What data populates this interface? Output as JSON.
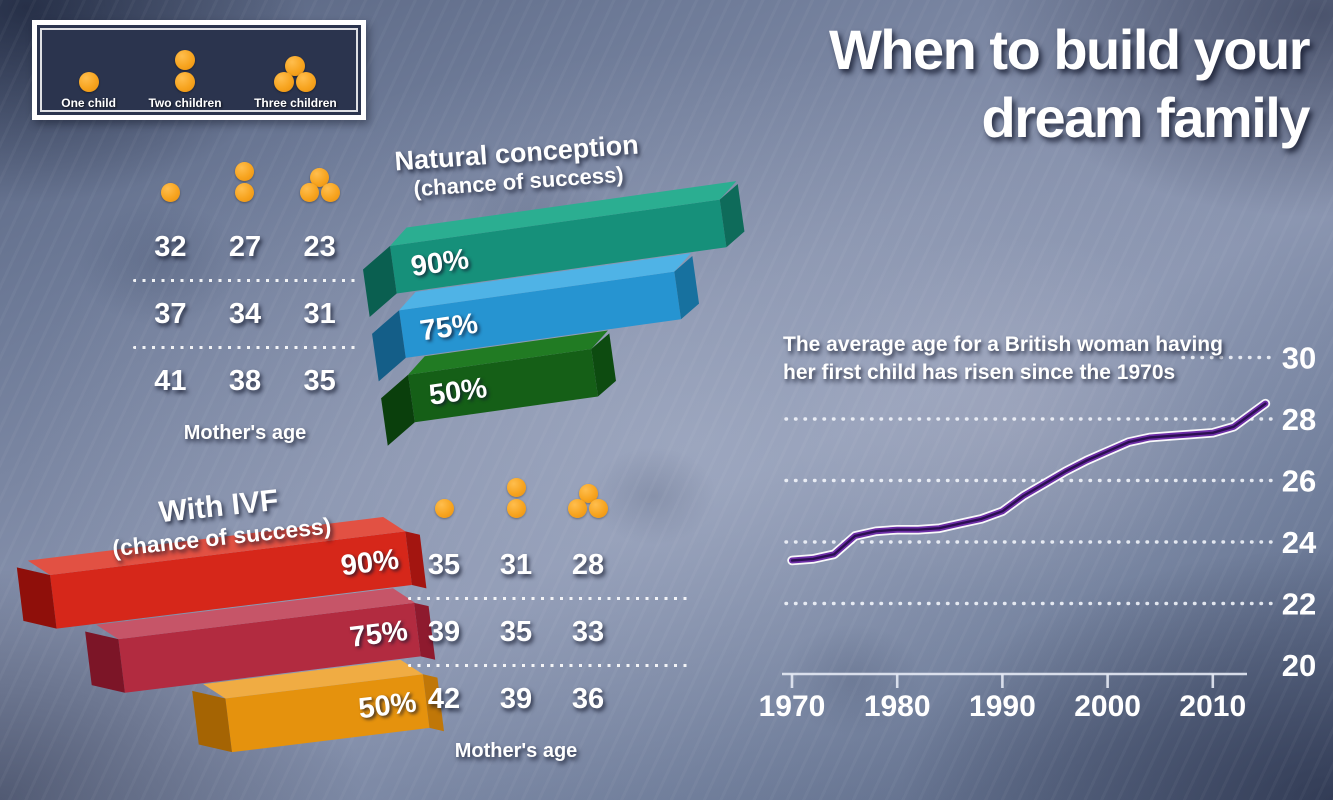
{
  "title": {
    "line1": "When to build your",
    "line2": "dream family"
  },
  "legend": {
    "items": [
      {
        "label": "One child",
        "dots": 1,
        "icon": "one-child-icon"
      },
      {
        "label": "Two children",
        "dots": 2,
        "icon": "two-children-icon"
      },
      {
        "label": "Three children",
        "dots": 3,
        "icon": "three-children-icon"
      }
    ],
    "dot_color": "#F7A41F",
    "box_color": "#2B344E"
  },
  "natural": {
    "heading": "Natural conception",
    "subheading": "(chance of success)",
    "bars": [
      {
        "label": "90%",
        "pct": 90,
        "front": "#16907A",
        "top": "#2BAE91",
        "capL": "#0A5F50",
        "capR": "#0E6B5A"
      },
      {
        "label": "75%",
        "pct": 75,
        "front": "#2694D1",
        "top": "#4FB3E6",
        "capL": "#145E88",
        "capR": "#17719F"
      },
      {
        "label": "50%",
        "pct": 50,
        "front": "#155F17",
        "top": "#217B23",
        "capL": "#0A3F0C",
        "capR": "#0D4B10"
      }
    ],
    "table": {
      "rows": [
        [
          "32",
          "27",
          "23"
        ],
        [
          "37",
          "34",
          "31"
        ],
        [
          "41",
          "38",
          "35"
        ]
      ],
      "footer": "Mother's age"
    }
  },
  "ivf": {
    "heading": "With IVF",
    "subheading": "(chance of success)",
    "bars": [
      {
        "label": "90%",
        "pct": 90,
        "front": "#D6271A",
        "top": "#E25143",
        "capL": "#8F0F0A",
        "capR": "#A31510"
      },
      {
        "label": "75%",
        "pct": 75,
        "front": "#B22B40",
        "top": "#C65568",
        "capL": "#7C1527",
        "capR": "#8E1A2E"
      },
      {
        "label": "50%",
        "pct": 50,
        "front": "#E5920D",
        "top": "#F0AC43",
        "capL": "#A56403",
        "capR": "#C07708"
      }
    ],
    "table": {
      "rows": [
        [
          "35",
          "31",
          "28"
        ],
        [
          "39",
          "35",
          "33"
        ],
        [
          "42",
          "39",
          "36"
        ]
      ],
      "footer": "Mother's age"
    }
  },
  "chart_data": [
    {
      "type": "table",
      "id": "natural-conception",
      "title": "Natural conception (chance of success)",
      "columns": [
        "One child",
        "Two children",
        "Three children"
      ],
      "value_note": "Mother's age",
      "rows": [
        {
          "chance_of_success": "90%",
          "mothers_age": [
            32,
            27,
            23
          ]
        },
        {
          "chance_of_success": "75%",
          "mothers_age": [
            37,
            34,
            31
          ]
        },
        {
          "chance_of_success": "50%",
          "mothers_age": [
            41,
            38,
            35
          ]
        }
      ]
    },
    {
      "type": "table",
      "id": "with-ivf",
      "title": "With IVF (chance of success)",
      "columns": [
        "One child",
        "Two children",
        "Three children"
      ],
      "value_note": "Mother's age",
      "rows": [
        {
          "chance_of_success": "90%",
          "mothers_age": [
            35,
            31,
            28
          ]
        },
        {
          "chance_of_success": "75%",
          "mothers_age": [
            39,
            35,
            33
          ]
        },
        {
          "chance_of_success": "50%",
          "mothers_age": [
            42,
            39,
            36
          ]
        }
      ]
    },
    {
      "type": "line",
      "id": "average-age-trend",
      "title": "The average age for a British woman having her first child has risen since the 1970s",
      "caption_line1": "The average age for a British woman having",
      "caption_line2": "her first child has risen since the 1970s",
      "x": [
        1970,
        1972,
        1974,
        1976,
        1978,
        1980,
        1982,
        1984,
        1986,
        1988,
        1990,
        1992,
        1994,
        1996,
        1998,
        2000,
        2002,
        2004,
        2006,
        2008,
        2010,
        2012,
        2015
      ],
      "y": [
        23.4,
        23.45,
        23.6,
        24.2,
        24.35,
        24.4,
        24.4,
        24.45,
        24.6,
        24.75,
        25.0,
        25.5,
        25.9,
        26.3,
        26.65,
        26.95,
        27.25,
        27.4,
        27.45,
        27.5,
        27.55,
        27.75,
        28.5
      ],
      "x_ticks": [
        1970,
        1980,
        1990,
        2000,
        2010
      ],
      "y_ticks": [
        20,
        22,
        24,
        26,
        28,
        30
      ],
      "ylim": [
        20,
        30
      ],
      "xlim": [
        1969,
        2016
      ],
      "grid": "dotted horizontal, labels on right",
      "line_color": "#6D2EA6",
      "legend_position": "none"
    }
  ]
}
